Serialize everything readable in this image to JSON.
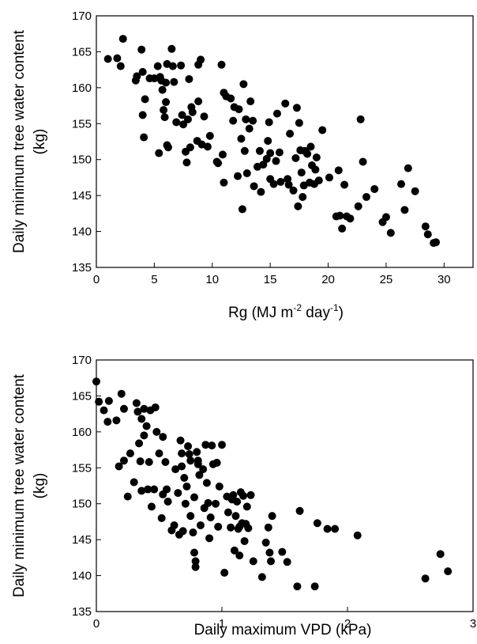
{
  "chart_data": [
    {
      "type": "scatter",
      "xlabel": "Rg (MJ m⁻² day⁻¹)",
      "xlabel_parts": {
        "pre": "Rg (MJ m",
        "sup1": "-2",
        "mid": " day",
        "sup2": "-1",
        "post": ")"
      },
      "ylabel_line1": "Daily minimum tree water content",
      "ylabel_line2": "(kg)",
      "xlim": [
        0,
        32.5
      ],
      "ylim": [
        135,
        170
      ],
      "xticks": [
        0,
        5,
        10,
        15,
        20,
        25,
        30
      ],
      "xtick_labels": [
        "0",
        "5",
        "10",
        "15",
        "20",
        "25",
        "30"
      ],
      "yticks": [
        135,
        140,
        145,
        150,
        155,
        160,
        165,
        170
      ],
      "ytick_labels": [
        "135",
        "140",
        "145",
        "150",
        "155",
        "160",
        "165",
        "170"
      ],
      "grid": false,
      "marker_color": "#000000",
      "points": [
        [
          1.0,
          164.0
        ],
        [
          1.8,
          164.1
        ],
        [
          2.1,
          163.0
        ],
        [
          2.3,
          166.8
        ],
        [
          3.4,
          161.0
        ],
        [
          3.5,
          161.6
        ],
        [
          3.9,
          165.3
        ],
        [
          4.0,
          162.2
        ],
        [
          4.0,
          156.2
        ],
        [
          4.1,
          153.1
        ],
        [
          4.2,
          158.4
        ],
        [
          4.6,
          161.3
        ],
        [
          5.0,
          161.3
        ],
        [
          5.3,
          163.0
        ],
        [
          5.4,
          150.9
        ],
        [
          5.5,
          161.5
        ],
        [
          5.6,
          161.0
        ],
        [
          5.7,
          159.7
        ],
        [
          5.8,
          156.9
        ],
        [
          5.9,
          155.9
        ],
        [
          6.0,
          160.7
        ],
        [
          6.0,
          158.0
        ],
        [
          6.1,
          163.3
        ],
        [
          6.1,
          152.0
        ],
        [
          6.2,
          151.7
        ],
        [
          6.5,
          165.4
        ],
        [
          6.6,
          163.0
        ],
        [
          6.7,
          160.8
        ],
        [
          6.9,
          155.2
        ],
        [
          7.3,
          163.1
        ],
        [
          7.4,
          156.2
        ],
        [
          7.5,
          154.9
        ],
        [
          7.7,
          151.1
        ],
        [
          7.8,
          149.6
        ],
        [
          7.9,
          155.6
        ],
        [
          8.0,
          161.2
        ],
        [
          8.1,
          151.7
        ],
        [
          8.2,
          157.3
        ],
        [
          8.3,
          156.6
        ],
        [
          8.7,
          152.6
        ],
        [
          8.8,
          158.1
        ],
        [
          8.8,
          163.2
        ],
        [
          9.0,
          163.9
        ],
        [
          9.1,
          152.1
        ],
        [
          9.3,
          156.0
        ],
        [
          9.6,
          151.8
        ],
        [
          9.8,
          153.3
        ],
        [
          10.4,
          149.7
        ],
        [
          10.5,
          149.5
        ],
        [
          10.8,
          163.2
        ],
        [
          10.9,
          150.7
        ],
        [
          11.0,
          146.8
        ],
        [
          11.0,
          159.3
        ],
        [
          11.2,
          158.8
        ],
        [
          11.6,
          158.5
        ],
        [
          11.8,
          155.4
        ],
        [
          11.9,
          157.3
        ],
        [
          12.2,
          147.7
        ],
        [
          12.3,
          157.0
        ],
        [
          12.5,
          152.9
        ],
        [
          12.6,
          143.1
        ],
        [
          12.7,
          160.5
        ],
        [
          12.8,
          151.2
        ],
        [
          12.9,
          155.6
        ],
        [
          13.0,
          148.1
        ],
        [
          13.2,
          154.3
        ],
        [
          13.3,
          158.1
        ],
        [
          13.5,
          155.4
        ],
        [
          13.6,
          146.3
        ],
        [
          13.9,
          149.0
        ],
        [
          14.1,
          151.2
        ],
        [
          14.2,
          145.5
        ],
        [
          14.4,
          149.3
        ],
        [
          14.7,
          150.1
        ],
        [
          14.8,
          152.6
        ],
        [
          14.9,
          155.2
        ],
        [
          15.0,
          150.9
        ],
        [
          15.0,
          147.3
        ],
        [
          15.3,
          146.6
        ],
        [
          15.5,
          149.8
        ],
        [
          15.6,
          156.4
        ],
        [
          15.8,
          151.0
        ],
        [
          15.9,
          146.9
        ],
        [
          16.3,
          157.8
        ],
        [
          16.5,
          147.3
        ],
        [
          16.6,
          146.5
        ],
        [
          16.7,
          153.6
        ],
        [
          17.0,
          145.7
        ],
        [
          17.2,
          150.2
        ],
        [
          17.3,
          157.2
        ],
        [
          17.4,
          143.5
        ],
        [
          17.5,
          155.1
        ],
        [
          17.6,
          151.3
        ],
        [
          17.7,
          148.2
        ],
        [
          17.8,
          144.8
        ],
        [
          17.9,
          146.4
        ],
        [
          18.0,
          151.2
        ],
        [
          18.2,
          150.8
        ],
        [
          18.4,
          146.8
        ],
        [
          18.5,
          151.8
        ],
        [
          18.6,
          149.2
        ],
        [
          18.8,
          146.6
        ],
        [
          18.9,
          148.6
        ],
        [
          19.0,
          150.3
        ],
        [
          19.2,
          147.1
        ],
        [
          19.5,
          154.1
        ],
        [
          20.1,
          147.5
        ],
        [
          20.7,
          142.1
        ],
        [
          20.9,
          148.5
        ],
        [
          21.0,
          142.2
        ],
        [
          21.2,
          140.4
        ],
        [
          21.4,
          146.5
        ],
        [
          21.6,
          142.1
        ],
        [
          21.9,
          141.8
        ],
        [
          22.6,
          143.5
        ],
        [
          22.8,
          155.6
        ],
        [
          23.0,
          149.7
        ],
        [
          23.3,
          144.8
        ],
        [
          24.0,
          145.9
        ],
        [
          24.7,
          141.3
        ],
        [
          25.0,
          142.0
        ],
        [
          25.4,
          139.8
        ],
        [
          26.3,
          146.6
        ],
        [
          26.6,
          143.0
        ],
        [
          26.9,
          148.8
        ],
        [
          27.5,
          145.6
        ],
        [
          28.4,
          140.7
        ],
        [
          28.6,
          139.6
        ],
        [
          29.1,
          138.4
        ],
        [
          29.3,
          138.5
        ]
      ]
    },
    {
      "type": "scatter",
      "xlabel": "Daily maximum VPD (kPa)",
      "ylabel_line1": "Daily minimum tree water content",
      "ylabel_line2": "(kg)",
      "xlim": [
        0,
        3
      ],
      "ylim": [
        135,
        170
      ],
      "xticks": [
        0,
        1,
        2,
        3
      ],
      "xtick_labels": [
        "0",
        "1",
        "2",
        "3"
      ],
      "yticks": [
        135,
        140,
        145,
        150,
        155,
        160,
        165,
        170
      ],
      "ytick_labels": [
        "135",
        "140",
        "145",
        "150",
        "155",
        "160",
        "165",
        "170"
      ],
      "grid": false,
      "marker_color": "#000000",
      "points": [
        [
          0.0,
          167.0
        ],
        [
          0.02,
          164.2
        ],
        [
          0.06,
          163.0
        ],
        [
          0.09,
          161.4
        ],
        [
          0.1,
          164.3
        ],
        [
          0.16,
          161.6
        ],
        [
          0.18,
          155.2
        ],
        [
          0.2,
          165.3
        ],
        [
          0.22,
          163.2
        ],
        [
          0.22,
          156.0
        ],
        [
          0.25,
          151.0
        ],
        [
          0.27,
          157.0
        ],
        [
          0.3,
          153.0
        ],
        [
          0.32,
          164.0
        ],
        [
          0.33,
          162.8
        ],
        [
          0.34,
          158.4
        ],
        [
          0.35,
          155.9
        ],
        [
          0.36,
          151.8
        ],
        [
          0.36,
          161.8
        ],
        [
          0.38,
          163.2
        ],
        [
          0.38,
          159.5
        ],
        [
          0.4,
          160.8
        ],
        [
          0.41,
          152.0
        ],
        [
          0.42,
          155.8
        ],
        [
          0.43,
          163.0
        ],
        [
          0.44,
          149.6
        ],
        [
          0.46,
          152.0
        ],
        [
          0.47,
          163.4
        ],
        [
          0.48,
          160.0
        ],
        [
          0.5,
          157.0
        ],
        [
          0.52,
          148.0
        ],
        [
          0.53,
          159.3
        ],
        [
          0.53,
          151.3
        ],
        [
          0.55,
          155.8
        ],
        [
          0.56,
          152.0
        ],
        [
          0.57,
          150.3
        ],
        [
          0.6,
          146.3
        ],
        [
          0.62,
          147.0
        ],
        [
          0.63,
          154.8
        ],
        [
          0.65,
          151.5
        ],
        [
          0.66,
          145.7
        ],
        [
          0.67,
          158.8
        ],
        [
          0.68,
          157.0
        ],
        [
          0.68,
          155.2
        ],
        [
          0.69,
          146.2
        ],
        [
          0.7,
          153.6
        ],
        [
          0.71,
          150.0
        ],
        [
          0.72,
          152.4
        ],
        [
          0.73,
          158.0
        ],
        [
          0.74,
          156.9
        ],
        [
          0.75,
          156.0
        ],
        [
          0.75,
          148.3
        ],
        [
          0.77,
          146.0
        ],
        [
          0.78,
          150.9
        ],
        [
          0.78,
          143.2
        ],
        [
          0.79,
          142.0
        ],
        [
          0.79,
          141.2
        ],
        [
          0.8,
          157.2
        ],
        [
          0.81,
          156.0
        ],
        [
          0.81,
          155.5
        ],
        [
          0.82,
          154.0
        ],
        [
          0.83,
          147.0
        ],
        [
          0.85,
          154.8
        ],
        [
          0.86,
          149.4
        ],
        [
          0.87,
          158.2
        ],
        [
          0.88,
          152.9
        ],
        [
          0.89,
          150.1
        ],
        [
          0.9,
          145.2
        ],
        [
          0.91,
          148.1
        ],
        [
          0.92,
          158.1
        ],
        [
          0.93,
          155.5
        ],
        [
          0.95,
          150.0
        ],
        [
          0.96,
          155.7
        ],
        [
          0.97,
          146.8
        ],
        [
          0.98,
          152.4
        ],
        [
          1.0,
          158.2
        ],
        [
          1.02,
          140.4
        ],
        [
          1.04,
          151.0
        ],
        [
          1.05,
          148.8
        ],
        [
          1.07,
          146.7
        ],
        [
          1.08,
          150.6
        ],
        [
          1.09,
          151.2
        ],
        [
          1.1,
          143.5
        ],
        [
          1.11,
          148.3
        ],
        [
          1.12,
          150.3
        ],
        [
          1.13,
          146.5
        ],
        [
          1.14,
          142.8
        ],
        [
          1.14,
          146.8
        ],
        [
          1.15,
          151.6
        ],
        [
          1.16,
          147.3
        ],
        [
          1.17,
          151.1
        ],
        [
          1.18,
          144.8
        ],
        [
          1.19,
          147.2
        ],
        [
          1.2,
          149.6
        ],
        [
          1.21,
          146.6
        ],
        [
          1.23,
          151.2
        ],
        [
          1.25,
          142.0
        ],
        [
          1.32,
          139.8
        ],
        [
          1.35,
          144.6
        ],
        [
          1.37,
          146.7
        ],
        [
          1.38,
          143.2
        ],
        [
          1.39,
          142.0
        ],
        [
          1.4,
          148.3
        ],
        [
          1.48,
          143.3
        ],
        [
          1.52,
          141.9
        ],
        [
          1.6,
          138.5
        ],
        [
          1.62,
          149.0
        ],
        [
          1.74,
          138.5
        ],
        [
          1.76,
          147.3
        ],
        [
          1.84,
          146.5
        ],
        [
          1.9,
          146.5
        ],
        [
          2.08,
          145.6
        ],
        [
          2.62,
          139.6
        ],
        [
          2.74,
          143.0
        ],
        [
          2.8,
          140.6
        ]
      ]
    }
  ]
}
